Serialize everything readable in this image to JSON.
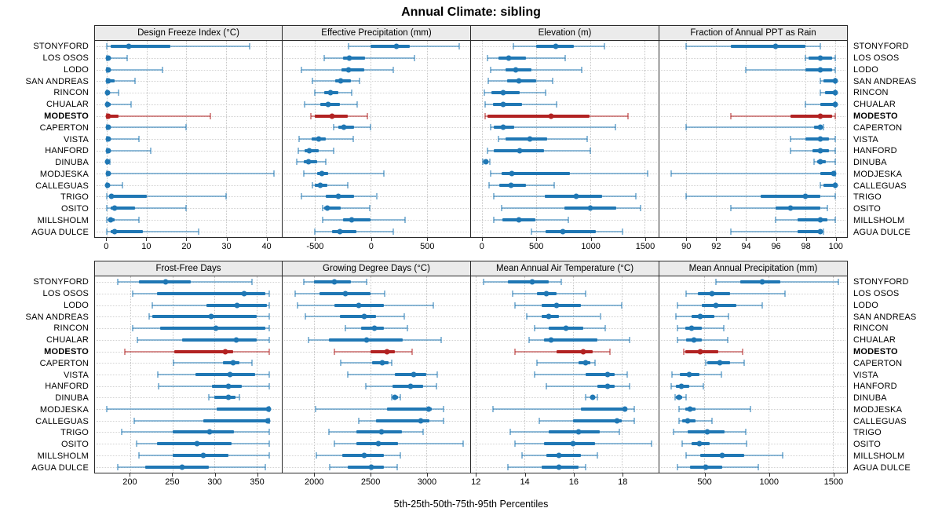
{
  "title": "Annual Climate: sibling",
  "caption": "5th-25th-50th-75th-95th Percentiles",
  "highlight_station": "MODESTO",
  "colors": {
    "series": "#1f77b4",
    "highlight": "#b22222",
    "grid": "#c6c6c6",
    "strip_bg": "#ebebeb",
    "border": "#2b2b2b"
  },
  "stations": [
    "STONYFORD",
    "LOS OSOS",
    "LODO",
    "SAN ANDREAS",
    "RINCON",
    "CHUALAR",
    "MODESTO",
    "CAPERTON",
    "VISTA",
    "HANFORD",
    "DINUBA",
    "MODJESKA",
    "CALLEGUAS",
    "TRIGO",
    "OSITO",
    "MILLSHOLM",
    "AGUA DULCE"
  ],
  "percentiles": [
    "5th",
    "25th",
    "50th",
    "75th",
    "95th"
  ],
  "chart_data": [
    {
      "type": "scatter",
      "style": "percentile-whisker",
      "title": "Design Freeze Index (°C)",
      "xlim": [
        -3,
        44
      ],
      "ticks": [
        0,
        10,
        20,
        30,
        40
      ],
      "values": [
        [
          0,
          1,
          5.5,
          16,
          36
        ],
        [
          0,
          0,
          0.3,
          0.6,
          5
        ],
        [
          0,
          0,
          0.3,
          1,
          14
        ],
        [
          0,
          0,
          0.3,
          2,
          7
        ],
        [
          0,
          0,
          0.2,
          0.5,
          3
        ],
        [
          0,
          0,
          0.2,
          1,
          6
        ],
        [
          0,
          0,
          0.3,
          3,
          26
        ],
        [
          0,
          0,
          0.3,
          0.7,
          20
        ],
        [
          0,
          0,
          0.3,
          1,
          8
        ],
        [
          0,
          0,
          0.3,
          0.8,
          11
        ],
        [
          0,
          0,
          0.2,
          0.4,
          0.8
        ],
        [
          0,
          0,
          0.3,
          1,
          42
        ],
        [
          0,
          0,
          0.2,
          0.5,
          4
        ],
        [
          0,
          0.5,
          1.2,
          10,
          30
        ],
        [
          0,
          1,
          2,
          7,
          20
        ],
        [
          0,
          0.5,
          1,
          2,
          8
        ],
        [
          0,
          1,
          2,
          9,
          23
        ]
      ]
    },
    {
      "type": "scatter",
      "style": "percentile-whisker",
      "title": "Effective Precipitation (mm)",
      "xlim": [
        -790,
        890
      ],
      "ticks": [
        -500,
        0,
        500
      ],
      "values": [
        [
          -200,
          0,
          230,
          350,
          790
        ],
        [
          -420,
          -250,
          -190,
          -50,
          390
        ],
        [
          -620,
          -260,
          -200,
          -60,
          200
        ],
        [
          -520,
          -320,
          -270,
          -180,
          -100
        ],
        [
          -500,
          -420,
          -360,
          -290,
          -170
        ],
        [
          -590,
          -450,
          -380,
          -280,
          -120
        ],
        [
          -540,
          -500,
          -350,
          -210,
          -30
        ],
        [
          -330,
          -290,
          -240,
          -150,
          0
        ],
        [
          -640,
          -530,
          -470,
          -400,
          -160
        ],
        [
          -650,
          -590,
          -550,
          -470,
          -330
        ],
        [
          -660,
          -600,
          -560,
          -480,
          -400
        ],
        [
          -600,
          -480,
          -440,
          -380,
          120
        ],
        [
          -520,
          -500,
          -450,
          -390,
          -210
        ],
        [
          -620,
          -400,
          -290,
          -150,
          50
        ],
        [
          -430,
          -420,
          -390,
          -270,
          -10
        ],
        [
          -430,
          -250,
          -170,
          0,
          310
        ],
        [
          -500,
          -350,
          -280,
          -130,
          200
        ]
      ]
    },
    {
      "type": "scatter",
      "style": "percentile-whisker",
      "title": "Elevation (m)",
      "xlim": [
        -100,
        1630
      ],
      "ticks": [
        0,
        500,
        1000,
        1500
      ],
      "values": [
        [
          290,
          500,
          680,
          850,
          1130
        ],
        [
          50,
          150,
          250,
          410,
          770
        ],
        [
          80,
          220,
          310,
          460,
          920
        ],
        [
          60,
          230,
          340,
          500,
          650
        ],
        [
          20,
          90,
          200,
          350,
          590
        ],
        [
          30,
          100,
          200,
          370,
          690
        ],
        [
          30,
          50,
          640,
          990,
          1350
        ],
        [
          80,
          110,
          200,
          300,
          1230
        ],
        [
          150,
          220,
          440,
          600,
          970
        ],
        [
          50,
          110,
          350,
          570,
          1000
        ],
        [
          10,
          20,
          40,
          55,
          75
        ],
        [
          80,
          180,
          280,
          810,
          1530
        ],
        [
          70,
          160,
          270,
          410,
          670
        ],
        [
          110,
          580,
          870,
          1110,
          1420
        ],
        [
          180,
          760,
          1000,
          1240,
          1460
        ],
        [
          110,
          190,
          340,
          490,
          800
        ],
        [
          460,
          590,
          750,
          1050,
          1300
        ]
      ]
    },
    {
      "type": "scatter",
      "style": "percentile-whisker",
      "title": "Fraction of Annual PPT as Rain",
      "xlim": [
        88.2,
        100.8
      ],
      "ticks": [
        90,
        92,
        94,
        96,
        98,
        100
      ],
      "values": [
        [
          90,
          93,
          96,
          98,
          99
        ],
        [
          98,
          98.2,
          99,
          99.8,
          100
        ],
        [
          94,
          98,
          99,
          99.8,
          100
        ],
        [
          99,
          99.2,
          100,
          100,
          100
        ],
        [
          99,
          99.3,
          100,
          100,
          100
        ],
        [
          98,
          99,
          100,
          100,
          100
        ],
        [
          93,
          97,
          99,
          99.8,
          100
        ],
        [
          90,
          98.6,
          99,
          99.1,
          99.2
        ],
        [
          97,
          98,
          99,
          99.6,
          100
        ],
        [
          97,
          98.5,
          99,
          99.6,
          100
        ],
        [
          98.6,
          98.8,
          99,
          99.4,
          100
        ],
        [
          89,
          99,
          99.9,
          100,
          100
        ],
        [
          99,
          99.2,
          100,
          100,
          100
        ],
        [
          90,
          95,
          98,
          99,
          100
        ],
        [
          93,
          96,
          97,
          99,
          99.5
        ],
        [
          96,
          97.5,
          99,
          99.5,
          100
        ],
        [
          93,
          97.5,
          99,
          99.1,
          99.2
        ]
      ]
    },
    {
      "type": "scatter",
      "style": "percentile-whisker",
      "title": "Frost-Free Days",
      "xlim": [
        158,
        380
      ],
      "ticks": [
        200,
        250,
        300,
        350
      ],
      "values": [
        [
          185,
          210,
          242,
          272,
          345
        ],
        [
          203,
          232,
          335,
          360,
          365
        ],
        [
          226,
          290,
          327,
          362,
          365
        ],
        [
          222,
          226,
          296,
          350,
          365
        ],
        [
          203,
          235,
          302,
          360,
          365
        ],
        [
          208,
          262,
          326,
          350,
          365
        ],
        [
          193,
          252,
          313,
          322,
          365
        ],
        [
          251,
          310,
          322,
          330,
          345
        ],
        [
          233,
          277,
          318,
          348,
          365
        ],
        [
          234,
          297,
          317,
          332,
          365
        ],
        [
          293,
          300,
          317,
          325,
          330
        ],
        [
          172,
          303,
          364,
          365,
          365
        ],
        [
          205,
          287,
          363,
          365,
          365
        ],
        [
          190,
          250,
          294,
          323,
          365
        ],
        [
          207,
          232,
          279,
          320,
          365
        ],
        [
          210,
          250,
          287,
          317,
          365
        ],
        [
          185,
          218,
          262,
          293,
          360
        ]
      ]
    },
    {
      "type": "scatter",
      "style": "percentile-whisker",
      "title": "Growing Degree Days (°C)",
      "xlim": [
        1720,
        3390
      ],
      "ticks": [
        2000,
        2500,
        3000
      ],
      "values": [
        [
          1910,
          2000,
          2180,
          2330,
          2470
        ],
        [
          1830,
          2050,
          2280,
          2500,
          2630
        ],
        [
          1850,
          2180,
          2400,
          2620,
          3060
        ],
        [
          1920,
          2230,
          2450,
          2550,
          2800
        ],
        [
          2280,
          2420,
          2540,
          2620,
          2830
        ],
        [
          1950,
          2130,
          2470,
          2790,
          3130
        ],
        [
          2180,
          2500,
          2650,
          2720,
          2870
        ],
        [
          2240,
          2520,
          2610,
          2660,
          2690
        ],
        [
          2300,
          2720,
          2890,
          3000,
          3100
        ],
        [
          2460,
          2700,
          2860,
          2970,
          3090
        ],
        [
          2690,
          2705,
          2720,
          2745,
          2765
        ],
        [
          2010,
          2650,
          3020,
          3050,
          3150
        ],
        [
          2400,
          2550,
          2950,
          3030,
          3150
        ],
        [
          2130,
          2380,
          2600,
          2780,
          2970
        ],
        [
          2180,
          2380,
          2570,
          2750,
          3330
        ],
        [
          2020,
          2250,
          2450,
          2620,
          2770
        ],
        [
          2140,
          2300,
          2510,
          2620,
          2740
        ]
      ]
    },
    {
      "type": "scatter",
      "style": "percentile-whisker",
      "title": "Mean Annual Air Temperature (°C)",
      "xlim": [
        11.8,
        19.5
      ],
      "ticks": [
        12,
        14,
        16,
        18
      ],
      "values": [
        [
          12.3,
          13.3,
          14.3,
          15.0,
          15.5
        ],
        [
          13.5,
          14.5,
          14.9,
          15.3,
          16.5
        ],
        [
          13.6,
          14.7,
          15.3,
          16.3,
          18.0
        ],
        [
          14.1,
          14.7,
          15.0,
          15.4,
          17.1
        ],
        [
          14.4,
          15.0,
          15.7,
          16.4,
          17.3
        ],
        [
          14.2,
          14.8,
          15.1,
          17.0,
          18.3
        ],
        [
          13.6,
          15.3,
          16.4,
          16.8,
          17.5
        ],
        [
          14.5,
          16.2,
          16.5,
          16.7,
          16.9
        ],
        [
          14.4,
          16.5,
          17.4,
          17.7,
          18.2
        ],
        [
          14.9,
          17.0,
          17.4,
          17.7,
          18.3
        ],
        [
          16.5,
          16.7,
          16.8,
          16.9,
          17.0
        ],
        [
          12.7,
          16.3,
          18.1,
          18.2,
          18.5
        ],
        [
          14.6,
          16.0,
          17.8,
          18.0,
          18.5
        ],
        [
          13.4,
          15.0,
          16.2,
          17.1,
          17.9
        ],
        [
          13.6,
          14.8,
          16.0,
          16.9,
          19.2
        ],
        [
          13.9,
          14.9,
          15.4,
          16.3,
          17.0
        ],
        [
          13.3,
          14.7,
          15.4,
          16.2,
          16.5
        ]
      ]
    },
    {
      "type": "scatter",
      "style": "percentile-whisker",
      "title": "Mean Annual Precipitation (mm)",
      "xlim": [
        150,
        1610
      ],
      "ticks": [
        500,
        1000,
        1500
      ],
      "values": [
        [
          590,
          780,
          950,
          1090,
          1540
        ],
        [
          360,
          450,
          560,
          700,
          1130
        ],
        [
          290,
          480,
          590,
          750,
          950
        ],
        [
          280,
          400,
          470,
          580,
          690
        ],
        [
          290,
          350,
          400,
          480,
          650
        ],
        [
          290,
          360,
          420,
          480,
          680
        ],
        [
          340,
          350,
          470,
          610,
          800
        ],
        [
          510,
          520,
          620,
          700,
          810
        ],
        [
          250,
          310,
          380,
          460,
          630
        ],
        [
          240,
          280,
          320,
          380,
          490
        ],
        [
          270,
          280,
          300,
          330,
          360
        ],
        [
          300,
          350,
          390,
          430,
          860
        ],
        [
          300,
          330,
          370,
          430,
          560
        ],
        [
          260,
          370,
          520,
          660,
          820
        ],
        [
          330,
          400,
          460,
          540,
          830
        ],
        [
          360,
          470,
          640,
          810,
          1110
        ],
        [
          290,
          390,
          510,
          640,
          920
        ]
      ]
    }
  ]
}
